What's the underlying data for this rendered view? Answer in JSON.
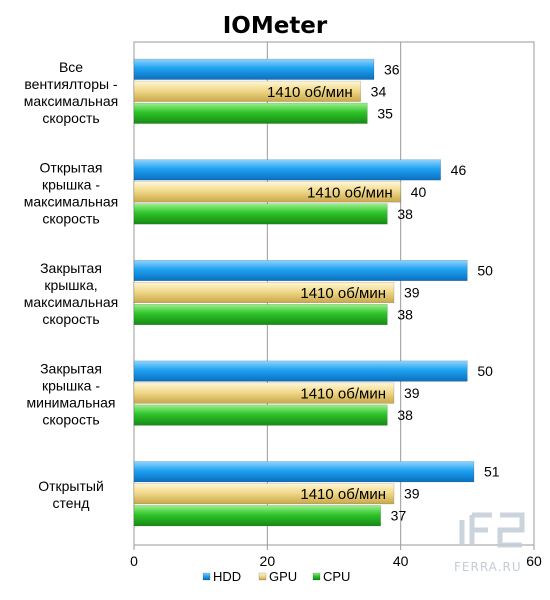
{
  "chart_data": {
    "type": "bar",
    "orientation": "horizontal",
    "title": "IOMeter",
    "categories": [
      [
        "Все",
        "вентиялторы -",
        "максимальная",
        "скорость"
      ],
      [
        "Открытая",
        "крышка -",
        "максимальная",
        "скорость"
      ],
      [
        "Закрытая",
        "крышка,",
        "максимальная",
        "скорость"
      ],
      [
        "Закрытая",
        "крышка -",
        "минимальная",
        "скорость"
      ],
      [
        "Открытый",
        "стенд"
      ]
    ],
    "series": [
      {
        "name": "HDD",
        "values": [
          36,
          46,
          50,
          50,
          51
        ],
        "color": "#1fa2f0"
      },
      {
        "name": "GPU",
        "values": [
          34,
          40,
          39,
          39,
          39
        ],
        "color": "#f1d98c",
        "annotation": "1410 об/мин"
      },
      {
        "name": "CPU",
        "values": [
          35,
          38,
          38,
          38,
          37
        ],
        "color": "#2fc42a"
      }
    ],
    "xlim": [
      0,
      60
    ],
    "xticks": [
      0,
      20,
      40,
      60
    ],
    "grid": true,
    "legend_position": "bottom"
  },
  "watermark": {
    "text": "FERRA.RU"
  }
}
